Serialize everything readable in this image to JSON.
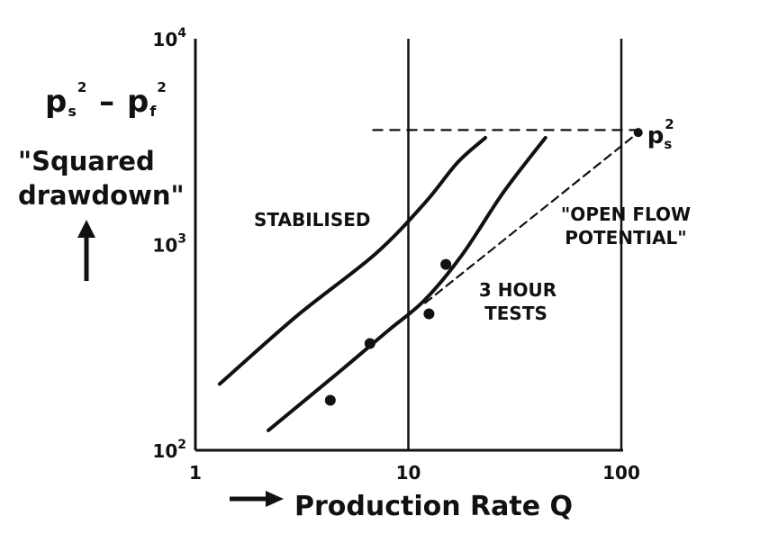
{
  "chart_data": {
    "type": "line",
    "xscale": "log",
    "yscale": "log",
    "xlim": [
      1,
      100
    ],
    "ylim": [
      100,
      10000
    ],
    "grid": "major lines at x=10 and x=100",
    "xlabel": "Production Rate Q",
    "ylabel_formula": {
      "base1": "p",
      "sub1": "s",
      "sup1": "2",
      "minus": "–",
      "base2": "p",
      "sub2": "f",
      "sup2": "2"
    },
    "ylabel_text": "\"Squared drawdown\"",
    "x_ticks": [
      {
        "value": 1,
        "label": "1"
      },
      {
        "value": 10,
        "label": "10"
      },
      {
        "value": 100,
        "label": "100"
      }
    ],
    "y_ticks": [
      {
        "value": 100,
        "base": "10",
        "exp": "2"
      },
      {
        "value": 1000,
        "base": "10",
        "exp": "3"
      },
      {
        "value": 10000,
        "base": "10",
        "exp": "4"
      }
    ],
    "series": [
      {
        "label": "STABILISED",
        "style": "solid",
        "points": [
          [
            1.3,
            210
          ],
          [
            3,
            450
          ],
          [
            7,
            900
          ],
          [
            12,
            1600
          ],
          [
            17,
            2500
          ],
          [
            23,
            3300
          ]
        ]
      },
      {
        "label_lines": [
          "3 HOUR",
          "TESTS"
        ],
        "style": "solid",
        "points": [
          [
            2.2,
            125
          ],
          [
            4.5,
            230
          ],
          [
            8,
            380
          ],
          [
            12,
            540
          ],
          [
            18,
            900
          ],
          [
            28,
            1800
          ],
          [
            44,
            3300
          ]
        ]
      },
      {
        "label_lines": [
          "\"OPEN FLOW",
          "POTENTIAL\""
        ],
        "style": "dashed",
        "points": [
          [
            12,
            520
          ],
          [
            120,
            3500
          ]
        ]
      }
    ],
    "reference_line": {
      "style": "dashed",
      "y": 3600,
      "x_from": 10,
      "x_to": 120
    },
    "reference_point": {
      "x": 120,
      "y": 3500,
      "label_base": "p",
      "label_sub": "s",
      "label_sup": "2"
    },
    "data_points": [
      [
        4.3,
        175
      ],
      [
        6.6,
        330
      ],
      [
        12.5,
        460
      ],
      [
        15,
        800
      ]
    ]
  }
}
